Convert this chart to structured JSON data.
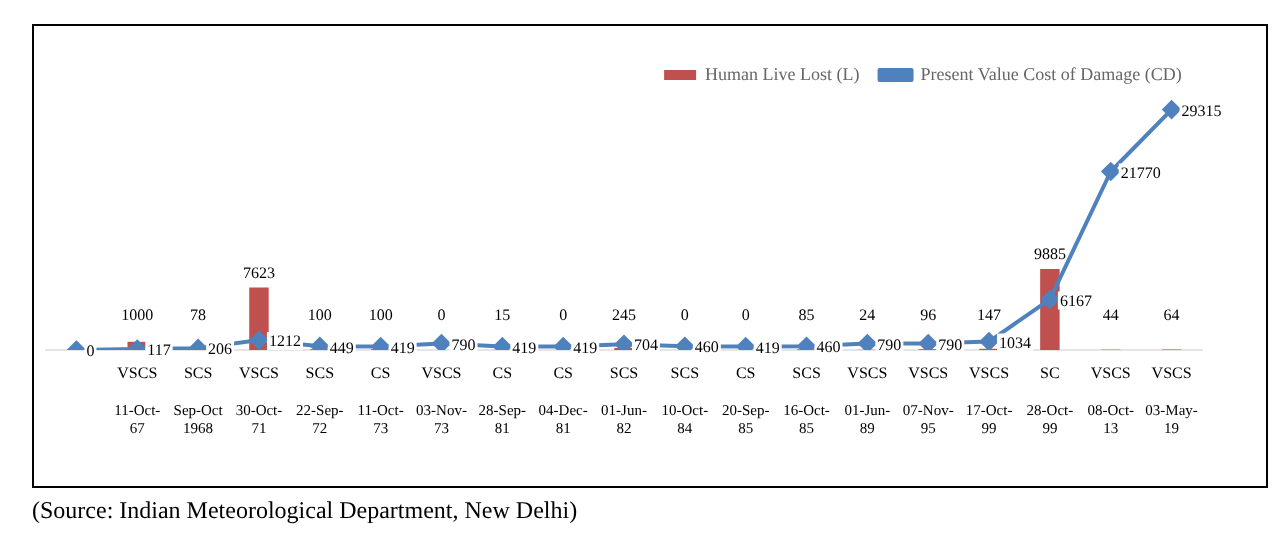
{
  "chart_data": {
    "type": "bar",
    "categories": [
      null,
      "11-Oct-67",
      "Sep-Oct 1968",
      "30-Oct-71",
      "22-Sep-72",
      "11-Oct-73",
      "03-Nov-73",
      "28-Sep-81",
      "04-Dec-81",
      "01-Jun-82",
      "10-Oct-84",
      "20-Sep-85",
      "16-Oct-85",
      "01-Jun-89",
      "07-Nov-95",
      "17-Oct-99",
      "28-Oct-99",
      "08-Oct-13",
      "03-May-19"
    ],
    "series": [
      {
        "name": "Human Live Lost (L)",
        "color": "#c0504d",
        "values": [
          null,
          1000,
          78,
          7623,
          100,
          100,
          0,
          15,
          0,
          245,
          0,
          0,
          85,
          24,
          96,
          147,
          9885,
          44,
          64
        ]
      },
      {
        "name": "Present Value Cost of Damage (CD)",
        "type": "line",
        "color": "#4f81bd",
        "values": [
          0,
          117,
          206,
          1212,
          449,
          419,
          790,
          419,
          419,
          704,
          460,
          419,
          460,
          790,
          790,
          1034,
          6167,
          21770,
          29315
        ]
      }
    ],
    "tick_labels": "x",
    "data_labels": true,
    "legend": "top right",
    "marker": "diamond",
    "grid": false,
    "annotations": [
      "VSCS",
      "SCS",
      "VSCS",
      "SCS",
      "CS",
      "VSCS",
      "CS",
      "CS",
      "SCS",
      "SCS",
      "CS",
      "SCS",
      "VSCS",
      "VSCS",
      "VSCS",
      "SC",
      "VSCS",
      "VSCS",
      "(Source: Indian Meteorological Department, New Delhi)"
    ]
  }
}
